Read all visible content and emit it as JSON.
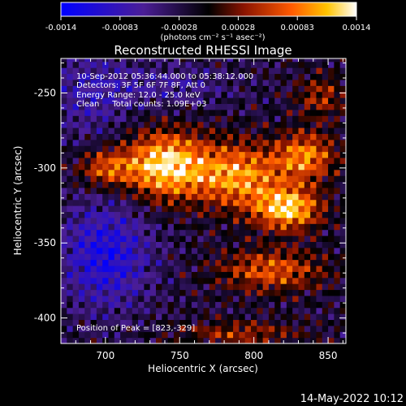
{
  "chart_data": {
    "type": "heatmap",
    "title": "Reconstructed RHESSI Image",
    "xlabel": "Heliocentric X (arcsec)",
    "ylabel": "Heliocentric Y (arcsec)",
    "xlim": [
      670,
      862
    ],
    "ylim": [
      -417,
      -227
    ],
    "x_ticks": [
      700,
      750,
      800,
      850
    ],
    "y_ticks": [
      -250,
      -300,
      -350,
      -400
    ],
    "colorbar": {
      "ticks": [
        "-0.0014",
        "-0.00083",
        "-0.00028",
        "0.00028",
        "0.00083",
        "0.0014"
      ],
      "range": [
        -0.0014,
        0.0014
      ],
      "unit_label": "(photons cm⁻² s⁻¹ asec⁻²)"
    },
    "annotations": [
      "10-Sep-2012 05:36:44.000 to 05:38:12.000",
      "Detectors: 3F 5F 6F 7F 8F, Att 0",
      "Energy Range: 12.0 - 25.0 keV",
      "Clean     Total counts: 1.09E+03"
    ],
    "peak_label": "Position of Peak = [823,-329]",
    "peak": [
      823,
      -329
    ]
  },
  "footer": {
    "date_stamp": "14-May-2022 10:12"
  }
}
